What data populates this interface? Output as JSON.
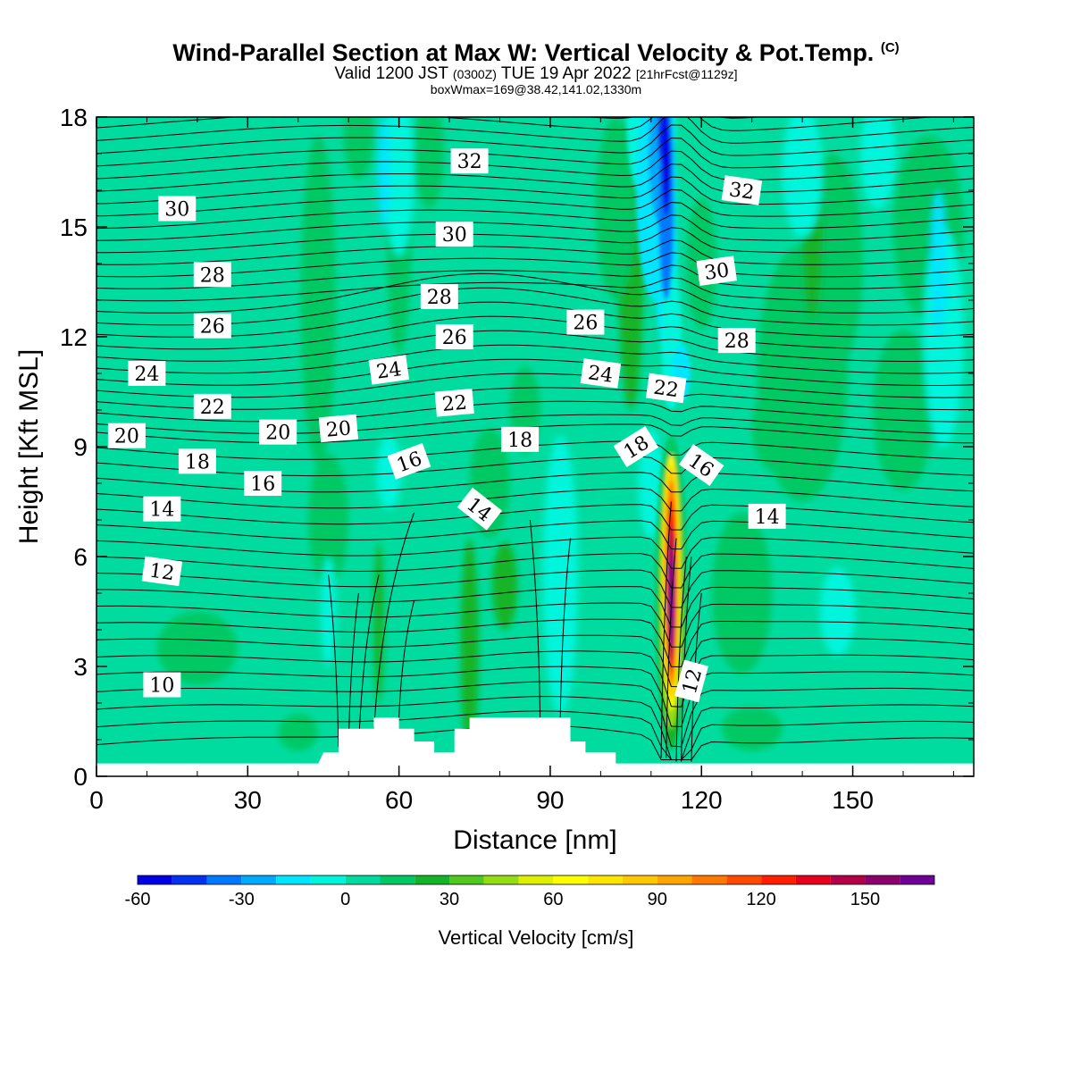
{
  "title": {
    "main": "Wind-Parallel Section at Max W: Vertical Velocity & Pot.Temp.",
    "copyright": "(C)",
    "valid_prefix": "Valid 1200 JST",
    "valid_utc": "(0300Z)",
    "valid_date": "TUE 19 Apr 2022",
    "forecast": "[21hrFcst@1129z]",
    "boxinfo": "boxWmax=169@38.42,141.02,1330m"
  },
  "colors": {
    "background_field": "#00dca0",
    "contour": "#000000",
    "terrain": "#ffffff"
  },
  "chart_data": {
    "type": "heatmap",
    "xlabel": "Distance [nm]",
    "ylabel": "Height [Kft MSL]",
    "xlim": [
      0,
      174
    ],
    "ylim": [
      0,
      18
    ],
    "xticks": [
      "0",
      "30",
      "60",
      "90",
      "120",
      "150"
    ],
    "yticks": [
      "0",
      "3",
      "6",
      "9",
      "12",
      "15",
      "18"
    ],
    "colorbar": {
      "label": "Vertical Velocity [cm/s]",
      "range": [
        -60,
        170
      ],
      "tick_labels": [
        "-60",
        "-30",
        "0",
        "30",
        "60",
        "90",
        "120",
        "150"
      ],
      "levels": [
        -60,
        -50,
        -40,
        -30,
        -20,
        -10,
        0,
        10,
        20,
        30,
        40,
        50,
        60,
        70,
        80,
        90,
        100,
        110,
        120,
        130,
        140,
        150,
        160,
        170
      ],
      "colors": [
        "#0000e6",
        "#0032f0",
        "#0078ff",
        "#00aaff",
        "#00e6ff",
        "#00f5dc",
        "#00dca0",
        "#00c864",
        "#14b428",
        "#50c81e",
        "#96dc14",
        "#dcf000",
        "#ffff00",
        "#ffe600",
        "#ffc800",
        "#ffa500",
        "#ff7800",
        "#ff4b00",
        "#ff1e00",
        "#e6001e",
        "#b40046",
        "#8c006e",
        "#6e0096"
      ]
    },
    "max_updraft": {
      "value_cm_s": 169,
      "x_nm": 114,
      "height_kft": 5
    },
    "theta_contour_labels": [
      {
        "text": "10",
        "x": 13,
        "y": 2.5
      },
      {
        "text": "12",
        "x": 13,
        "y": 5.6,
        "angle": 8
      },
      {
        "text": "12",
        "x": 118,
        "y": 2.6,
        "angle": -75
      },
      {
        "text": "14",
        "x": 13,
        "y": 7.3
      },
      {
        "text": "14",
        "x": 76,
        "y": 7.3,
        "angle": 38
      },
      {
        "text": "14",
        "x": 133,
        "y": 7.1
      },
      {
        "text": "16",
        "x": 33,
        "y": 8.0
      },
      {
        "text": "16",
        "x": 62,
        "y": 8.6,
        "angle": -20
      },
      {
        "text": "16",
        "x": 120,
        "y": 8.5,
        "angle": 35
      },
      {
        "text": "18",
        "x": 20,
        "y": 8.6
      },
      {
        "text": "18",
        "x": 84,
        "y": 9.2
      },
      {
        "text": "18",
        "x": 107,
        "y": 9.0,
        "angle": -32
      },
      {
        "text": "20",
        "x": 6,
        "y": 9.3
      },
      {
        "text": "20",
        "x": 36,
        "y": 9.4
      },
      {
        "text": "20",
        "x": 48,
        "y": 9.5,
        "angle": -5
      },
      {
        "text": "22",
        "x": 23,
        "y": 10.1
      },
      {
        "text": "22",
        "x": 71,
        "y": 10.2,
        "angle": -5
      },
      {
        "text": "22",
        "x": 113,
        "y": 10.6,
        "angle": 8
      },
      {
        "text": "24",
        "x": 10,
        "y": 11.0
      },
      {
        "text": "24",
        "x": 58,
        "y": 11.1,
        "angle": -8
      },
      {
        "text": "24",
        "x": 100,
        "y": 11.0,
        "angle": 8
      },
      {
        "text": "26",
        "x": 23,
        "y": 12.3
      },
      {
        "text": "26",
        "x": 71,
        "y": 12.0
      },
      {
        "text": "26",
        "x": 97,
        "y": 12.4
      },
      {
        "text": "28",
        "x": 23,
        "y": 13.7
      },
      {
        "text": "28",
        "x": 68,
        "y": 13.1
      },
      {
        "text": "28",
        "x": 127,
        "y": 11.9
      },
      {
        "text": "30",
        "x": 16,
        "y": 15.5
      },
      {
        "text": "30",
        "x": 71,
        "y": 14.8
      },
      {
        "text": "30",
        "x": 123,
        "y": 13.8,
        "angle": -8
      },
      {
        "text": "32",
        "x": 74,
        "y": 16.8
      },
      {
        "text": "32",
        "x": 128,
        "y": 16.0,
        "angle": 8
      }
    ],
    "terrain_profile_kft": [
      [
        0,
        0.35
      ],
      [
        44,
        0.35
      ],
      [
        45,
        0.65
      ],
      [
        48,
        0.65
      ],
      [
        48,
        1.3
      ],
      [
        55,
        1.3
      ],
      [
        55,
        1.6
      ],
      [
        60,
        1.6
      ],
      [
        60,
        1.3
      ],
      [
        63,
        1.3
      ],
      [
        63,
        0.95
      ],
      [
        67,
        0.95
      ],
      [
        67,
        0.65
      ],
      [
        71,
        0.65
      ],
      [
        71,
        1.3
      ],
      [
        74,
        1.3
      ],
      [
        74,
        1.6
      ],
      [
        94,
        1.6
      ],
      [
        94,
        0.95
      ],
      [
        97,
        0.95
      ],
      [
        97,
        0.65
      ],
      [
        103,
        0.65
      ],
      [
        103,
        0.35
      ],
      [
        174,
        0.35
      ]
    ]
  }
}
